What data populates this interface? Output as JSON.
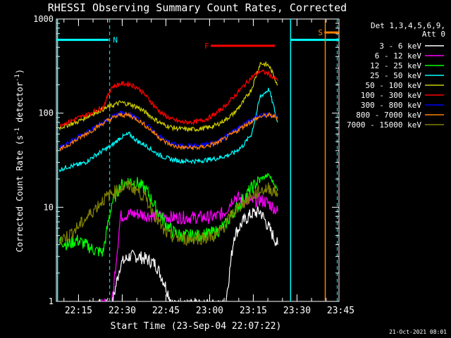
{
  "chart_data": {
    "type": "line",
    "title": "RHESSI Observing Summary Count Rates, Corrected",
    "xlabel": "Start Time (23-Sep-04 22:07:22)",
    "ylabel_parts": [
      "Corrected Count Rate (s",
      "-1",
      " detector",
      "-1",
      ")"
    ],
    "y_scale": "log",
    "ylim": [
      1,
      1000
    ],
    "y_ticks": [
      {
        "v": 1,
        "label": "1"
      },
      {
        "v": 10,
        "label": "10"
      },
      {
        "v": 100,
        "label": "100"
      },
      {
        "v": 1000,
        "label": "1000"
      }
    ],
    "xlim_min": [
      0,
      97
    ],
    "x_ticks": [
      {
        "t": 7.6,
        "label": "22:15"
      },
      {
        "t": 22.6,
        "label": "22:30"
      },
      {
        "t": 37.6,
        "label": "22:45"
      },
      {
        "t": 52.6,
        "label": "23:00"
      },
      {
        "t": 67.6,
        "label": "23:15"
      },
      {
        "t": 82.6,
        "label": "23:30"
      },
      {
        "t": 97.6,
        "label": "23:45"
      }
    ],
    "grid": false,
    "legend_placement": "right",
    "legend_header": [
      "Det 1,3,4,5,6,9,",
      "Att 0"
    ],
    "series": [
      {
        "name": "3 - 6 keV",
        "color": "#ffffff",
        "x": [
          10,
          13,
          16,
          19,
          22,
          25,
          28,
          31,
          34,
          37,
          40,
          43,
          46,
          49,
          52,
          55,
          58,
          61,
          64,
          67,
          70,
          73,
          76
        ],
        "values": [
          0.9,
          0.9,
          0.9,
          0.9,
          2.5,
          3.0,
          3.0,
          2.8,
          2.5,
          1.6,
          0.9,
          0.9,
          0.9,
          0.9,
          0.9,
          0.9,
          0.9,
          5.0,
          7.0,
          8.5,
          9.0,
          6.0,
          4.0
        ]
      },
      {
        "name": "6 - 12 keV",
        "color": "#ff00ff",
        "x": [
          10,
          13,
          16,
          19,
          22,
          25,
          28,
          31,
          34,
          37,
          40,
          43,
          46,
          49,
          52,
          55,
          58,
          61,
          64,
          67,
          70,
          73,
          76
        ],
        "values": [
          0.9,
          0.9,
          0.9,
          0.9,
          8.0,
          8.5,
          8.5,
          8.2,
          8.0,
          8.0,
          7.8,
          7.8,
          7.8,
          7.8,
          7.8,
          8.0,
          9.0,
          13.0,
          12.0,
          11.5,
          12.0,
          11.0,
          9.0
        ]
      },
      {
        "name": "12 - 25 keV",
        "color": "#00ff00",
        "x": [
          1,
          4,
          7,
          10,
          13,
          16,
          19,
          22,
          25,
          28,
          31,
          34,
          37,
          40,
          43,
          46,
          49,
          52,
          55,
          58,
          61,
          64,
          67,
          70,
          73,
          76
        ],
        "values": [
          4.5,
          4.0,
          4.5,
          4.0,
          3.5,
          3.3,
          11.0,
          17.0,
          19.0,
          18.0,
          15.0,
          10.0,
          7.0,
          5.5,
          5.0,
          5.0,
          5.0,
          5.2,
          5.5,
          6.5,
          9.0,
          12.0,
          16.0,
          20.0,
          22.0,
          15.0
        ]
      },
      {
        "name": "25 - 50 keV",
        "color": "#00ffff",
        "x": [
          1,
          4,
          7,
          10,
          13,
          16,
          19,
          22,
          25,
          28,
          31,
          34,
          37,
          40,
          43,
          46,
          49,
          52,
          55,
          58,
          61,
          64,
          67,
          70,
          73,
          76
        ],
        "values": [
          25,
          27,
          28,
          30,
          35,
          40,
          45,
          55,
          60,
          50,
          45,
          38,
          34,
          32,
          31,
          31,
          31,
          32,
          33,
          35,
          38,
          45,
          60,
          150,
          180,
          80
        ]
      },
      {
        "name": "50 - 100 keV",
        "color": "#cccc00",
        "x": [
          1,
          4,
          7,
          10,
          13,
          16,
          19,
          22,
          25,
          28,
          31,
          34,
          37,
          40,
          43,
          46,
          49,
          52,
          55,
          58,
          61,
          64,
          67,
          70,
          73,
          76
        ],
        "values": [
          70,
          75,
          80,
          90,
          100,
          110,
          120,
          130,
          125,
          115,
          100,
          85,
          75,
          70,
          68,
          67,
          68,
          70,
          75,
          85,
          100,
          130,
          180,
          340,
          320,
          200
        ]
      },
      {
        "name": "100 - 300 keV",
        "color": "#ff0000",
        "x": [
          1,
          4,
          7,
          10,
          13,
          16,
          19,
          22,
          25,
          28,
          31,
          34,
          37,
          40,
          43,
          46,
          49,
          52,
          55,
          58,
          61,
          64,
          67,
          70,
          73,
          76
        ],
        "values": [
          75,
          80,
          88,
          95,
          105,
          115,
          190,
          205,
          205,
          185,
          150,
          115,
          95,
          85,
          80,
          80,
          82,
          88,
          100,
          120,
          150,
          190,
          240,
          280,
          260,
          220
        ]
      },
      {
        "name": "300 - 800 keV",
        "color": "#0000ff",
        "x": [
          1,
          4,
          7,
          10,
          13,
          16,
          19,
          22,
          25,
          28,
          31,
          34,
          37,
          40,
          43,
          46,
          49,
          52,
          55,
          58,
          61,
          64,
          67,
          70,
          73,
          76
        ],
        "values": [
          42,
          48,
          55,
          62,
          70,
          80,
          90,
          100,
          98,
          88,
          75,
          62,
          52,
          47,
          45,
          45,
          45,
          47,
          50,
          56,
          65,
          75,
          85,
          95,
          98,
          92
        ]
      },
      {
        "name": "800 - 7000 keV",
        "color": "#ff8000",
        "x": [
          1,
          4,
          7,
          10,
          13,
          16,
          19,
          22,
          25,
          28,
          31,
          34,
          37,
          40,
          43,
          46,
          49,
          52,
          55,
          58,
          61,
          64,
          67,
          70,
          73,
          76
        ],
        "values": [
          40,
          46,
          52,
          60,
          68,
          78,
          88,
          96,
          95,
          85,
          72,
          60,
          50,
          45,
          43,
          43,
          43,
          45,
          48,
          54,
          62,
          72,
          82,
          92,
          95,
          90
        ]
      },
      {
        "name": "7000 - 15000 keV",
        "color": "#808000",
        "x": [
          1,
          4,
          7,
          10,
          13,
          16,
          19,
          22,
          25,
          28,
          31,
          34,
          37,
          40,
          43,
          46,
          49,
          52,
          55,
          58,
          61,
          64,
          67,
          70,
          73,
          76
        ],
        "values": [
          4.5,
          5.0,
          6.0,
          7.5,
          9.5,
          12.0,
          14.0,
          16.0,
          17.0,
          15.0,
          12.0,
          8.0,
          5.5,
          4.8,
          4.6,
          4.6,
          4.7,
          4.8,
          5.0,
          6.5,
          9.0,
          11.0,
          13.0,
          15.0,
          16.0,
          14.0
        ]
      }
    ],
    "annotations": {
      "N": {
        "label": "N",
        "color": "#00ffff",
        "bar_x": [
          0,
          18
        ],
        "line_t": 18.3
      },
      "F": {
        "label": "F",
        "color": "#ff0000",
        "bar_x": [
          53,
          75
        ]
      },
      "S": {
        "label": "S",
        "color": "#ff8000",
        "bar_x": [
          92,
          97
        ],
        "line_t": 92.3
      },
      "solid_cyan_lines": [
        0.4,
        80.4
      ],
      "cyan_bar_right": [
        80.4,
        97
      ],
      "dashed_cyan_right": 96.4
    }
  },
  "footer_timestamp": "21-Oct-2021 08:01"
}
